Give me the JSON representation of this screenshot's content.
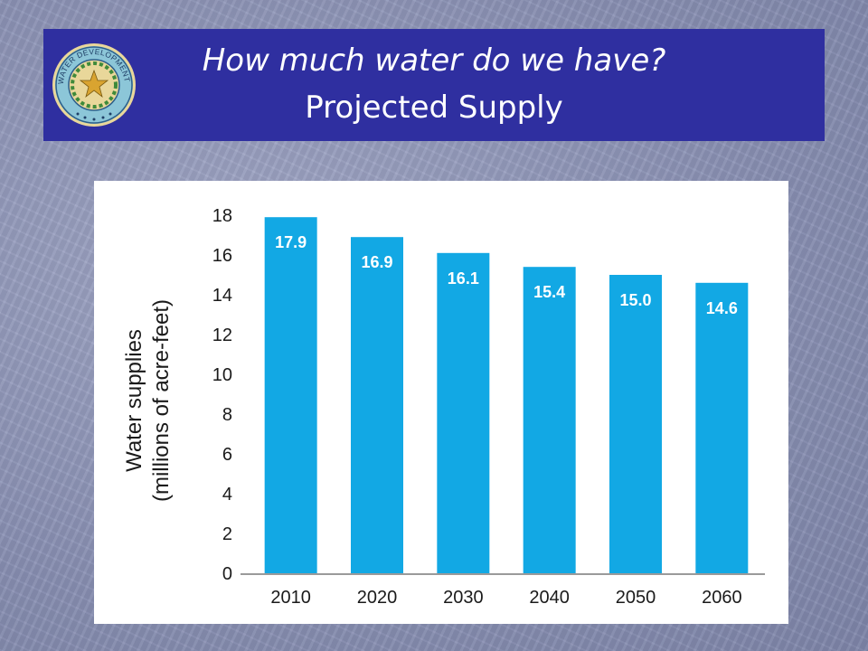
{
  "slide": {
    "title": "How much water do we have?",
    "subtitle": "Projected Supply",
    "seal": {
      "ring_text": "TEXAS WATER DEVELOPMENT BOARD",
      "icon": "texas-star-seal"
    }
  },
  "colors": {
    "banner": "#2f2fa0",
    "bar": "#12a8e4",
    "axis": "#9a9a9a",
    "background": "#8e95b8"
  },
  "chart_data": {
    "type": "bar",
    "categories": [
      "2010",
      "2020",
      "2030",
      "2040",
      "2050",
      "2060"
    ],
    "values": [
      17.9,
      16.9,
      16.1,
      15.4,
      15.0,
      14.6
    ],
    "value_labels": [
      "17.9",
      "16.9",
      "16.1",
      "15.4",
      "15.0",
      "14.6"
    ],
    "ylabel_line1": "Water supplies",
    "ylabel_line2": "(millions of acre-feet)",
    "ylim": [
      0,
      18
    ],
    "yticks": [
      "0",
      "2",
      "4",
      "6",
      "8",
      "10",
      "12",
      "14",
      "16",
      "18"
    ],
    "grid": false,
    "legend": "none"
  }
}
